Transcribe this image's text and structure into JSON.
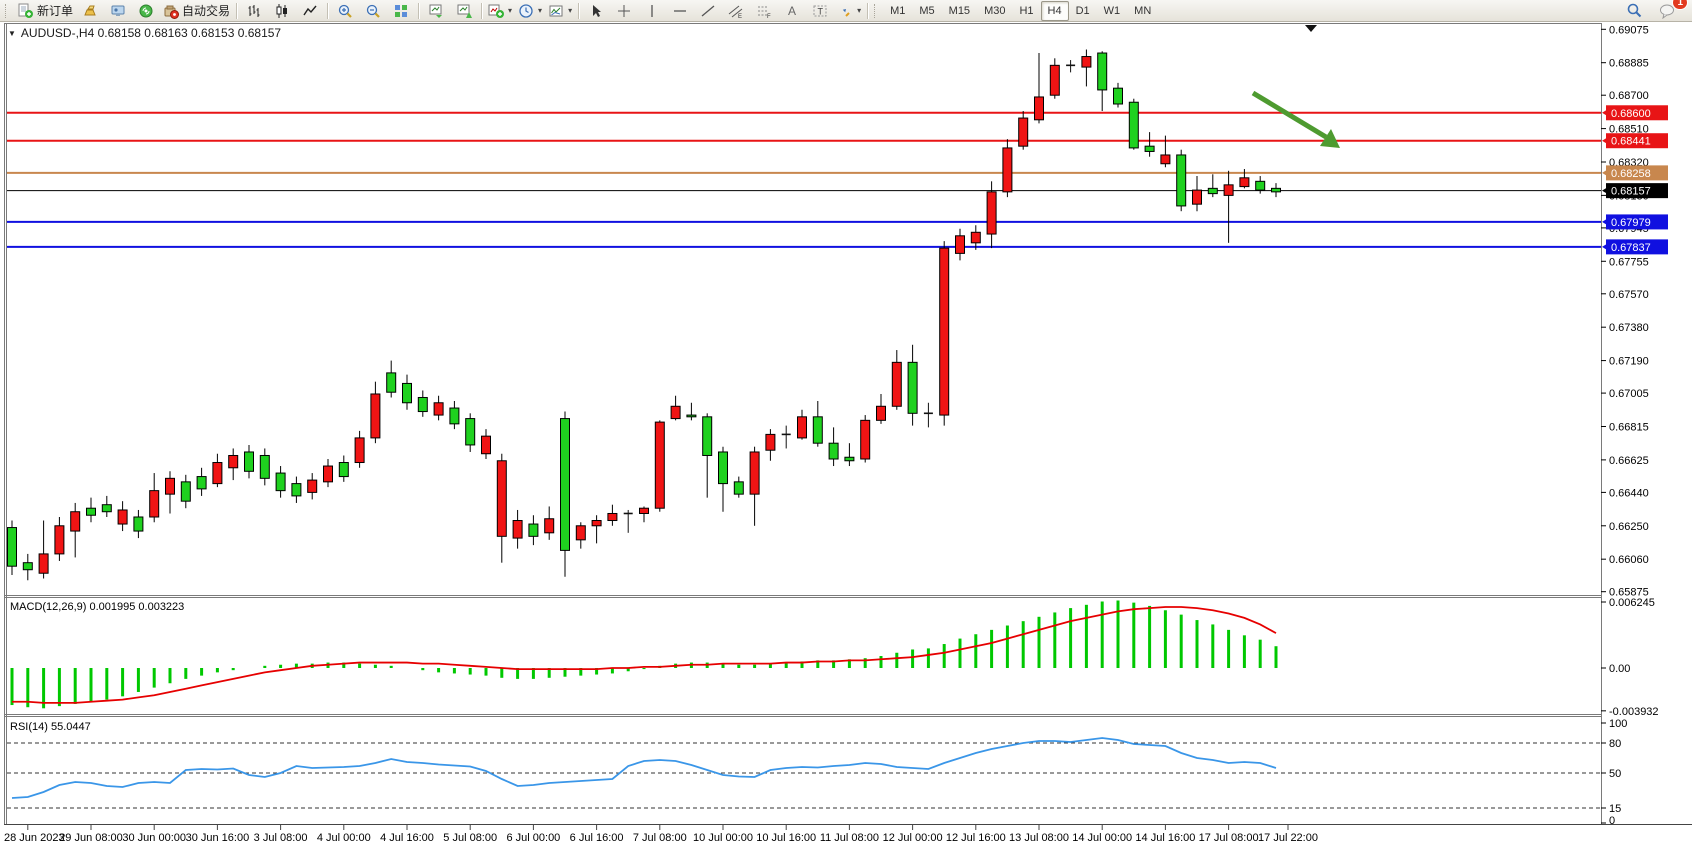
{
  "toolbar": {
    "groups": [
      {
        "name": "trade",
        "items": [
          {
            "name": "new-order-button",
            "icon": "neworder",
            "label": "新订单"
          },
          {
            "name": "gold-button",
            "icon": "gold"
          },
          {
            "name": "publisher-button",
            "icon": "publisher"
          },
          {
            "name": "signals-button",
            "icon": "signals"
          },
          {
            "name": "autotrading-button",
            "icon": "autotrade",
            "label": "自动交易"
          }
        ]
      },
      {
        "name": "chart-mode",
        "items": [
          {
            "name": "bar-chart-button",
            "icon": "bars"
          },
          {
            "name": "candlestick-chart-button",
            "icon": "candles"
          },
          {
            "name": "line-chart-button",
            "icon": "linechart"
          }
        ]
      },
      {
        "name": "zoom",
        "items": [
          {
            "name": "zoom-in-button",
            "icon": "zoomin"
          },
          {
            "name": "zoom-out-button",
            "icon": "zoomout"
          },
          {
            "name": "tile-windows-button",
            "icon": "tile"
          }
        ]
      },
      {
        "name": "arrange",
        "items": [
          {
            "name": "auto-arrange-button",
            "icon": "arrange1"
          },
          {
            "name": "cascade-button",
            "icon": "arrange2"
          }
        ]
      },
      {
        "name": "dropdowns",
        "items": [
          {
            "name": "add-indicator-dropdown",
            "icon": "addind",
            "dropdown": true
          },
          {
            "name": "periods-dropdown",
            "icon": "clock",
            "dropdown": true
          },
          {
            "name": "templates-dropdown",
            "icon": "template",
            "dropdown": true
          }
        ]
      },
      {
        "name": "objects",
        "items": [
          {
            "name": "cursor-button",
            "icon": "cursor"
          },
          {
            "name": "crosshair-button",
            "icon": "crosshair"
          },
          {
            "name": "vertical-line-button",
            "icon": "vline"
          },
          {
            "name": "horizontal-line-button",
            "icon": "hline"
          },
          {
            "name": "trendline-button",
            "icon": "trend"
          },
          {
            "name": "equidistant-channel-button",
            "icon": "channel"
          },
          {
            "name": "fibonacci-button",
            "icon": "fibo"
          },
          {
            "name": "text-button",
            "icon": "texta"
          },
          {
            "name": "text-label-button",
            "icon": "labelt"
          },
          {
            "name": "arrows-dropdown",
            "icon": "arrows",
            "dropdown": true
          }
        ]
      }
    ],
    "timeframes": [
      {
        "label": "M1"
      },
      {
        "label": "M5"
      },
      {
        "label": "M15"
      },
      {
        "label": "M30"
      },
      {
        "label": "H1"
      },
      {
        "label": "H4",
        "active": true
      },
      {
        "label": "D1"
      },
      {
        "label": "W1"
      },
      {
        "label": "MN"
      }
    ],
    "right": [
      {
        "name": "search-button",
        "icon": "search"
      },
      {
        "name": "notifications-button",
        "icon": "chat",
        "badge": "1"
      }
    ]
  },
  "chart": {
    "title": "AUDUSD-,H4  0.68158 0.68163 0.68153 0.68157",
    "symbol": "AUDUSD-",
    "timeframe": "H4",
    "ohlc": {
      "open": "0.68158",
      "high": "0.68163",
      "low": "0.68153",
      "close": "0.68157"
    },
    "y_ticks": [
      "0.69075",
      "0.68885",
      "0.68700",
      "0.68510",
      "0.68320",
      "0.68130",
      "0.67945",
      "0.67755",
      "0.67570",
      "0.67380",
      "0.67190",
      "0.67005",
      "0.66815",
      "0.66625",
      "0.66440",
      "0.66250",
      "0.66060",
      "0.65875"
    ],
    "hlines": [
      {
        "price": 0.686,
        "label": "0.68600",
        "color": "#e81416",
        "width": 2
      },
      {
        "price": 0.68441,
        "label": "0.68441",
        "color": "#e81416",
        "width": 2
      },
      {
        "price": 0.68258,
        "label": "0.68258",
        "color": "#c8874e",
        "width": 2
      },
      {
        "price": 0.68157,
        "label": "0.68157",
        "color": "#000000",
        "width": 1,
        "current": true
      },
      {
        "price": 0.67979,
        "label": "0.67979",
        "color": "#1010e0",
        "width": 2
      },
      {
        "price": 0.67837,
        "label": "0.67837",
        "color": "#1010e0",
        "width": 2
      }
    ],
    "time_labels": [
      "28 Jun 2023",
      "29 Jun 08:00",
      "30 Jun 00:00",
      "30 Jun 16:00",
      "3 Jul 08:00",
      "4 Jul 00:00",
      "4 Jul 16:00",
      "5 Jul 08:00",
      "6 Jul 00:00",
      "6 Jul 16:00",
      "7 Jul 08:00",
      "10 Jul 00:00",
      "10 Jul 16:00",
      "11 Jul 08:00",
      "12 Jul 00:00",
      "12 Jul 16:00",
      "13 Jul 08:00",
      "14 Jul 00:00",
      "14 Jul 16:00",
      "17 Jul 08:00",
      "17 Jul 22:00"
    ],
    "macd": {
      "label": "MACD(12,26,9) 0.001995 0.003223",
      "ticks": [
        "0.006245",
        "0.00",
        "-0.003932"
      ],
      "histogram_color": "#00c800",
      "signal_color": "#e60000"
    },
    "rsi": {
      "label": "RSI(14) 55.0447",
      "ticks": [
        "100",
        "80",
        "50",
        "15",
        "0"
      ],
      "dashed_levels": [
        80,
        50,
        15
      ],
      "line_color": "#3a96e8"
    },
    "annotation_arrow": {
      "color": "#4e9b30",
      "direction": "down-right"
    },
    "candle_colors": {
      "up_body": "#1fd11f",
      "down_body": "#f01414",
      "doji": "#111111",
      "outline": "#000000"
    }
  },
  "chart_data": {
    "type": "candlestick",
    "symbol": "AUDUSD",
    "period": "H4",
    "candle_format": [
      "body_top",
      "body_bottom",
      "high",
      "low",
      "color g=green r=red k=black-doji"
    ],
    "candles": [
      [
        0.6624,
        0.6602,
        0.6628,
        0.6597,
        "g"
      ],
      [
        0.6604,
        0.66,
        0.6609,
        0.6594,
        "g"
      ],
      [
        0.6609,
        0.6598,
        0.6628,
        0.6595,
        "r"
      ],
      [
        0.6625,
        0.6609,
        0.663,
        0.6605,
        "r"
      ],
      [
        0.6633,
        0.6622,
        0.6638,
        0.6607,
        "r"
      ],
      [
        0.6635,
        0.6631,
        0.6641,
        0.6627,
        "g"
      ],
      [
        0.6637,
        0.6633,
        0.6642,
        0.663,
        "g"
      ],
      [
        0.6634,
        0.6626,
        0.6639,
        0.6622,
        "r"
      ],
      [
        0.663,
        0.6622,
        0.6634,
        0.6618,
        "g"
      ],
      [
        0.6645,
        0.663,
        0.6655,
        0.6627,
        "r"
      ],
      [
        0.6652,
        0.6643,
        0.6656,
        0.6632,
        "r"
      ],
      [
        0.665,
        0.6639,
        0.6654,
        0.6635,
        "g"
      ],
      [
        0.6653,
        0.6646,
        0.6658,
        0.6642,
        "g"
      ],
      [
        0.6661,
        0.6649,
        0.6666,
        0.6647,
        "r"
      ],
      [
        0.6665,
        0.6658,
        0.6669,
        0.6651,
        "r"
      ],
      [
        0.6667,
        0.6656,
        0.6671,
        0.6652,
        "g"
      ],
      [
        0.6665,
        0.6652,
        0.6669,
        0.6648,
        "g"
      ],
      [
        0.6655,
        0.6645,
        0.6659,
        0.6641,
        "g"
      ],
      [
        0.6649,
        0.6642,
        0.6653,
        0.6638,
        "g"
      ],
      [
        0.6651,
        0.6644,
        0.6655,
        0.664,
        "r"
      ],
      [
        0.6659,
        0.665,
        0.6663,
        0.6647,
        "r"
      ],
      [
        0.6661,
        0.6653,
        0.6665,
        0.665,
        "g"
      ],
      [
        0.6675,
        0.6661,
        0.6679,
        0.6658,
        "r"
      ],
      [
        0.67,
        0.6675,
        0.6707,
        0.6672,
        "r"
      ],
      [
        0.6712,
        0.6701,
        0.6719,
        0.6698,
        "g"
      ],
      [
        0.6706,
        0.6695,
        0.6711,
        0.6691,
        "g"
      ],
      [
        0.6698,
        0.669,
        0.6702,
        0.6687,
        "g"
      ],
      [
        0.6695,
        0.6688,
        0.6699,
        0.6685,
        "r"
      ],
      [
        0.6692,
        0.6683,
        0.6696,
        0.668,
        "g"
      ],
      [
        0.6686,
        0.6671,
        0.6689,
        0.6667,
        "g"
      ],
      [
        0.6676,
        0.6666,
        0.668,
        0.6663,
        "r"
      ],
      [
        0.6662,
        0.6619,
        0.6666,
        0.6604,
        "r"
      ],
      [
        0.6628,
        0.6618,
        0.6634,
        0.6612,
        "r"
      ],
      [
        0.6626,
        0.6619,
        0.6631,
        0.6614,
        "g"
      ],
      [
        0.6629,
        0.6621,
        0.6636,
        0.6617,
        "r"
      ],
      [
        0.6686,
        0.6611,
        0.669,
        0.6596,
        "g"
      ],
      [
        0.6625,
        0.6617,
        0.6627,
        0.6612,
        "r"
      ],
      [
        0.6628,
        0.6625,
        0.6631,
        0.6615,
        "r"
      ],
      [
        0.6632,
        0.6628,
        0.6637,
        0.6625,
        "r"
      ],
      [
        0.6632,
        0.6631,
        0.6634,
        0.6621,
        "k"
      ],
      [
        0.6635,
        0.6632,
        0.6636,
        0.6627,
        "r"
      ],
      [
        0.6684,
        0.6635,
        0.6685,
        0.6633,
        "r"
      ],
      [
        0.6693,
        0.6686,
        0.6699,
        0.6685,
        "r"
      ],
      [
        0.6688,
        0.6687,
        0.6695,
        0.6685,
        "g"
      ],
      [
        0.6687,
        0.6665,
        0.6689,
        0.6641,
        "g"
      ],
      [
        0.6667,
        0.6649,
        0.667,
        0.6633,
        "g"
      ],
      [
        0.665,
        0.6643,
        0.6653,
        0.6641,
        "g"
      ],
      [
        0.6667,
        0.6643,
        0.667,
        0.6625,
        "r"
      ],
      [
        0.6677,
        0.6668,
        0.668,
        0.6662,
        "r"
      ],
      [
        0.6677,
        0.6675,
        0.6682,
        0.6669,
        "k"
      ],
      [
        0.6687,
        0.6675,
        0.6691,
        0.6674,
        "r"
      ],
      [
        0.6687,
        0.6672,
        0.6696,
        0.667,
        "g"
      ],
      [
        0.6672,
        0.6663,
        0.6681,
        0.6659,
        "g"
      ],
      [
        0.6664,
        0.6662,
        0.6672,
        0.6659,
        "g"
      ],
      [
        0.6685,
        0.6663,
        0.6688,
        0.6661,
        "r"
      ],
      [
        0.6693,
        0.6685,
        0.67,
        0.6683,
        "r"
      ],
      [
        0.6718,
        0.6693,
        0.6725,
        0.6691,
        "r"
      ],
      [
        0.6718,
        0.6689,
        0.6728,
        0.6682,
        "g"
      ],
      [
        0.6689,
        0.6687,
        0.6695,
        0.6681,
        "k"
      ],
      [
        0.6783,
        0.6688,
        0.6787,
        0.6682,
        "r"
      ],
      [
        0.679,
        0.678,
        0.6794,
        0.6776,
        "r"
      ],
      [
        0.6792,
        0.6786,
        0.6796,
        0.6782,
        "r"
      ],
      [
        0.6815,
        0.6791,
        0.6821,
        0.6783,
        "r"
      ],
      [
        0.684,
        0.6815,
        0.6845,
        0.6812,
        "r"
      ],
      [
        0.6857,
        0.6841,
        0.6861,
        0.6839,
        "r"
      ],
      [
        0.6869,
        0.6856,
        0.6894,
        0.6854,
        "r"
      ],
      [
        0.6887,
        0.687,
        0.6891,
        0.6868,
        "r"
      ],
      [
        0.6887,
        0.6886,
        0.689,
        0.6883,
        "k"
      ],
      [
        0.6892,
        0.6886,
        0.6896,
        0.6875,
        "r"
      ],
      [
        0.6894,
        0.6873,
        0.6895,
        0.6861,
        "g"
      ],
      [
        0.6874,
        0.6865,
        0.6877,
        0.6863,
        "g"
      ],
      [
        0.6866,
        0.684,
        0.6868,
        0.6839,
        "g"
      ],
      [
        0.6841,
        0.6838,
        0.6849,
        0.6835,
        "g"
      ],
      [
        0.6836,
        0.6831,
        0.6847,
        0.6829,
        "r"
      ],
      [
        0.6836,
        0.6807,
        0.6839,
        0.6804,
        "g"
      ],
      [
        0.6816,
        0.6808,
        0.6824,
        0.6804,
        "r"
      ],
      [
        0.6817,
        0.6814,
        0.6825,
        0.6812,
        "g"
      ],
      [
        0.6819,
        0.6813,
        0.6827,
        0.6786,
        "r"
      ],
      [
        0.6823,
        0.6818,
        0.6828,
        0.6817,
        "r"
      ],
      [
        0.6821,
        0.6816,
        0.6824,
        0.6814,
        "g"
      ],
      [
        0.6817,
        0.6815,
        0.682,
        0.6812,
        "g"
      ]
    ],
    "macd_histogram": [
      -0.0034,
      -0.0036,
      -0.0037,
      -0.0035,
      -0.0033,
      -0.0031,
      -0.0029,
      -0.0026,
      -0.0022,
      -0.0018,
      -0.0014,
      -0.001,
      -0.0007,
      -0.0004,
      -0.0002,
      0.0,
      0.0002,
      0.0003,
      0.0004,
      0.0004,
      0.0005,
      0.0005,
      0.0004,
      0.0003,
      0.0002,
      0.0,
      -0.0002,
      -0.0004,
      -0.0005,
      -0.0006,
      -0.0007,
      -0.0009,
      -0.001,
      -0.001,
      -0.0009,
      -0.0008,
      -0.0007,
      -0.0006,
      -0.0005,
      -0.0003,
      -0.0001,
      0.0002,
      0.0004,
      0.0005,
      0.0005,
      0.0004,
      0.0003,
      0.0003,
      0.0004,
      0.0005,
      0.0006,
      0.0007,
      0.0007,
      0.0008,
      0.0009,
      0.0011,
      0.0014,
      0.0017,
      0.0018,
      0.0022,
      0.0027,
      0.0031,
      0.0035,
      0.0039,
      0.0043,
      0.0047,
      0.0051,
      0.0055,
      0.0058,
      0.0061,
      0.0062,
      0.006,
      0.0057,
      0.0053,
      0.0049,
      0.0044,
      0.004,
      0.0035,
      0.003,
      0.0026,
      0.002
    ],
    "macd_signal": [
      -0.0031,
      -0.0031,
      -0.0032,
      -0.0032,
      -0.0032,
      -0.0031,
      -0.003,
      -0.0029,
      -0.0027,
      -0.0025,
      -0.0022,
      -0.0019,
      -0.0016,
      -0.0013,
      -0.001,
      -0.0007,
      -0.0004,
      -0.0002,
      0.0,
      0.0002,
      0.0003,
      0.0004,
      0.0005,
      0.0005,
      0.0005,
      0.0005,
      0.0004,
      0.0004,
      0.0003,
      0.0002,
      0.0001,
      0.0,
      -0.0001,
      -0.0001,
      -0.0001,
      -0.0001,
      -0.0001,
      -0.0001,
      0.0,
      0.0,
      0.0001,
      0.0001,
      0.0002,
      0.0003,
      0.0003,
      0.0004,
      0.0004,
      0.0004,
      0.0004,
      0.0005,
      0.0005,
      0.0006,
      0.0006,
      0.0007,
      0.0007,
      0.0008,
      0.0009,
      0.001,
      0.0012,
      0.0014,
      0.0017,
      0.002,
      0.0023,
      0.0027,
      0.0031,
      0.0035,
      0.0039,
      0.0043,
      0.0046,
      0.0049,
      0.0052,
      0.0054,
      0.0055,
      0.0056,
      0.0056,
      0.0055,
      0.0053,
      0.005,
      0.0046,
      0.004,
      0.0032
    ],
    "rsi_values": [
      25,
      26,
      31,
      38,
      41,
      40,
      37,
      36,
      40,
      41,
      40,
      53,
      54,
      53.5,
      54.5,
      48,
      46,
      50,
      57,
      55,
      55.5,
      56,
      57,
      60,
      64,
      61,
      60,
      58.5,
      57.5,
      56.5,
      52,
      44,
      37,
      38,
      40,
      41,
      42,
      43,
      44,
      57,
      62,
      63,
      62,
      58,
      53,
      48,
      46.5,
      46,
      53,
      55,
      56,
      55.5,
      57,
      58,
      60,
      59,
      56,
      55,
      54,
      60,
      65,
      70,
      74,
      77,
      80,
      82,
      82,
      81,
      83,
      85,
      83,
      79,
      78,
      77,
      70,
      65,
      63,
      60,
      61,
      60,
      55
    ],
    "macd_scale": {
      "max": 0.006245,
      "zero": 0.0,
      "min": -0.003932
    },
    "rsi_scale": {
      "max": 100,
      "levels": [
        80,
        50,
        15
      ],
      "min": 0
    },
    "price_axis_range": [
      0.65875,
      0.69075
    ]
  }
}
